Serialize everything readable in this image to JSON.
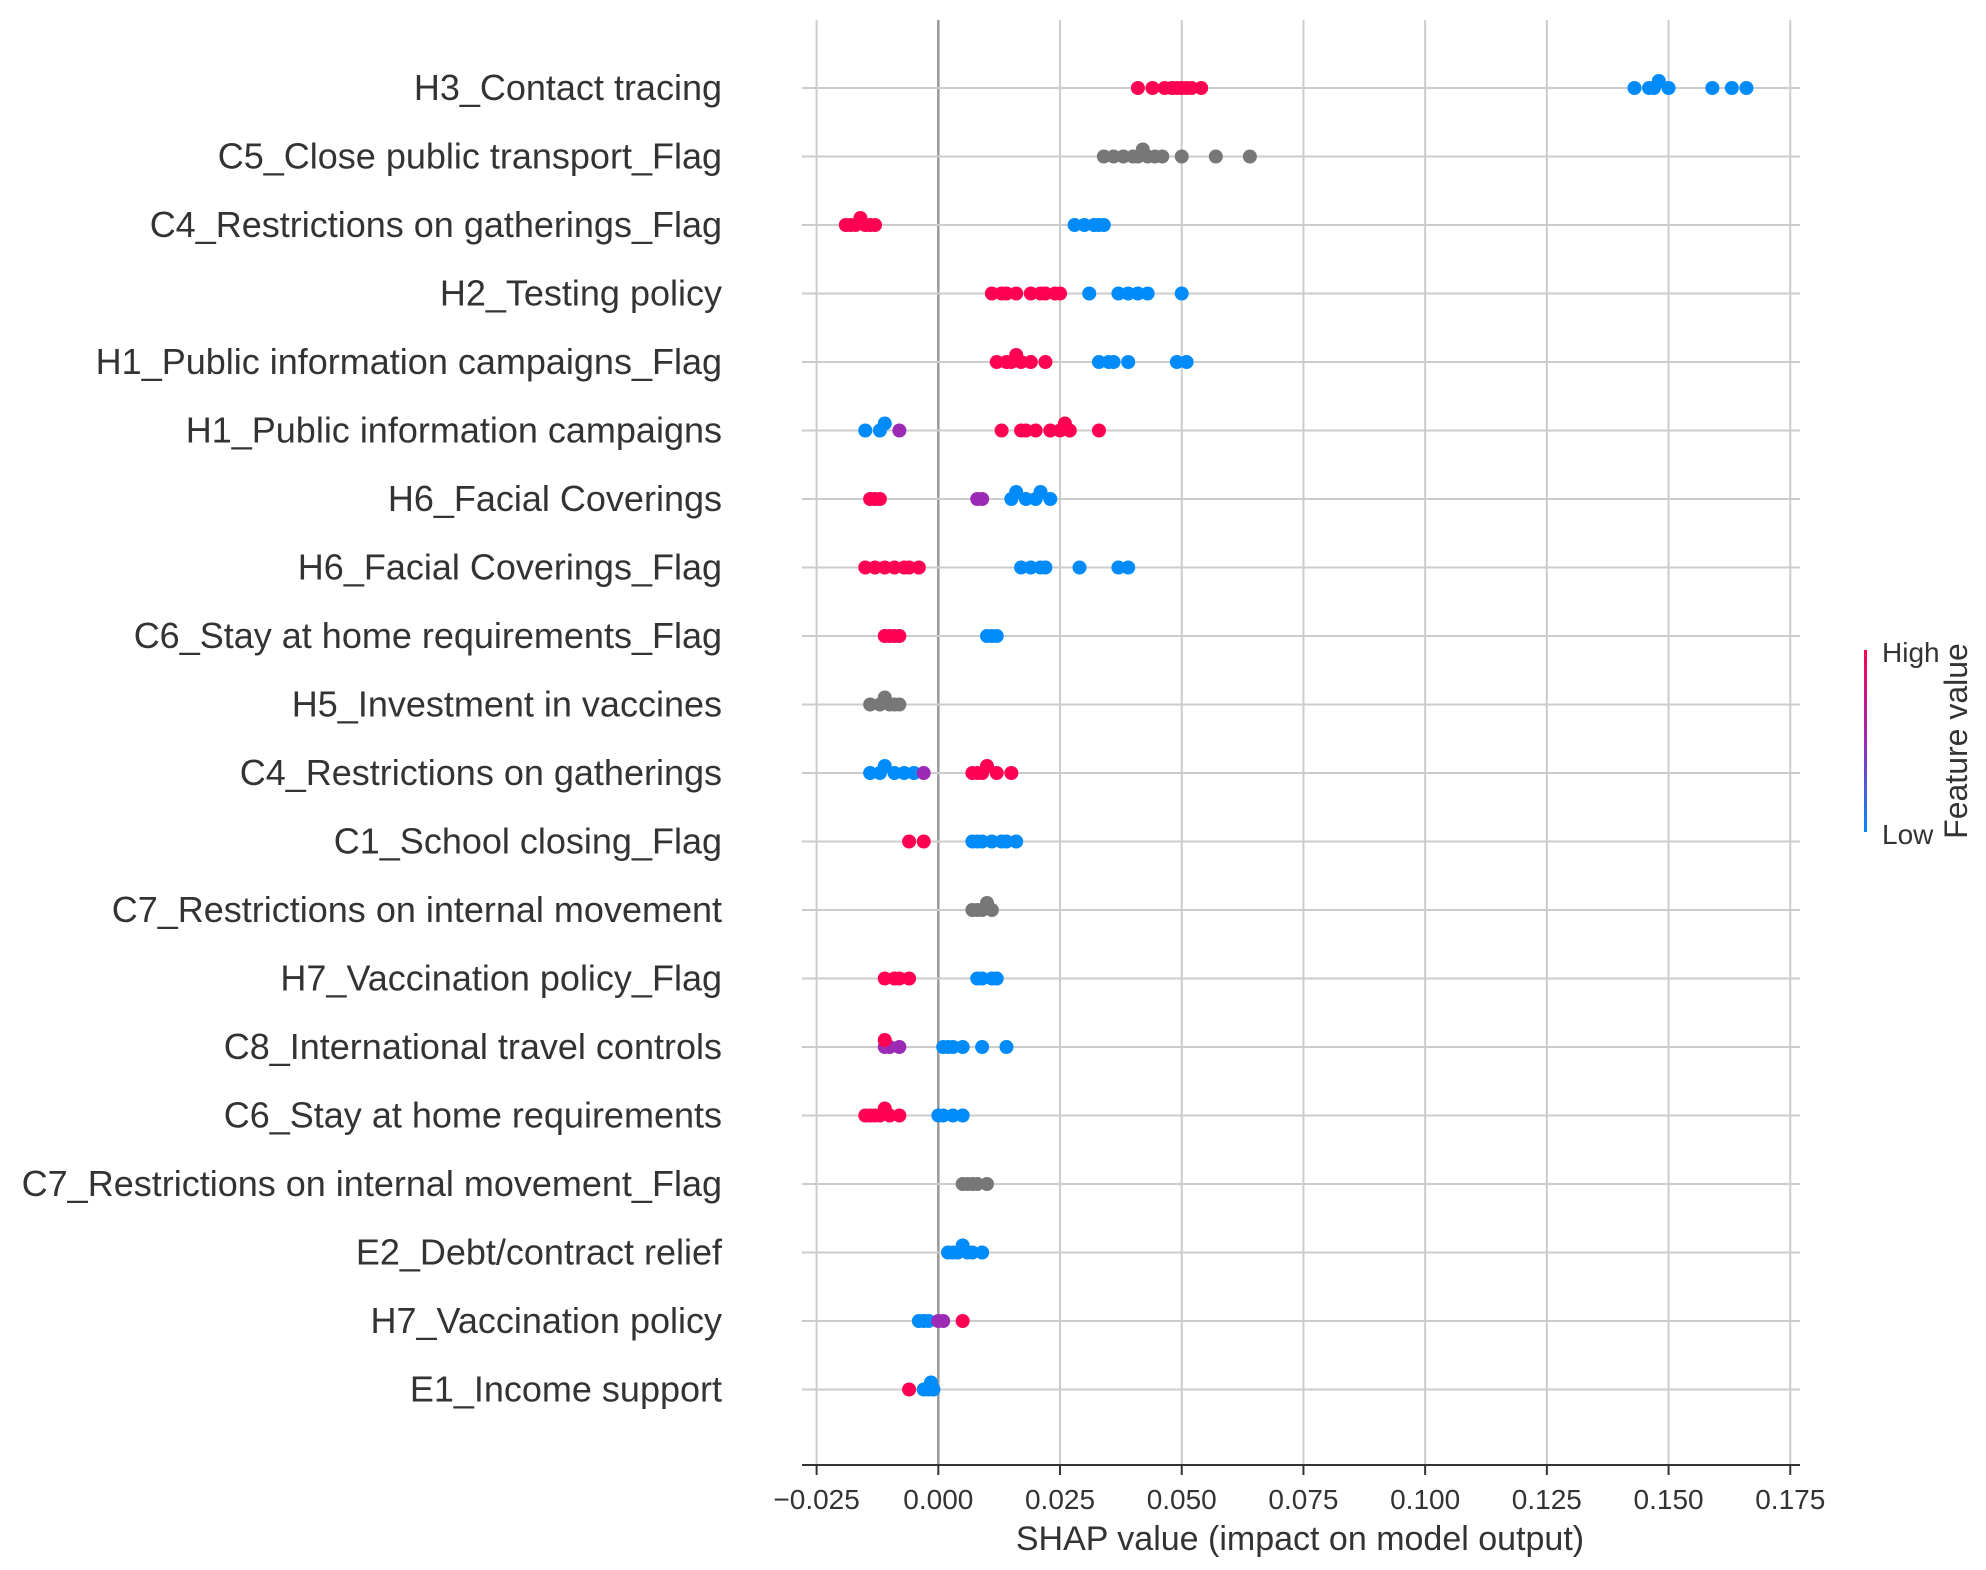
{
  "chart_data": {
    "type": "scatter",
    "subtype": "shap-beeswarm",
    "xlabel": "SHAP value (impact on model output)",
    "xlim": [
      -0.028,
      0.177
    ],
    "xticks": [
      -0.025,
      0.0,
      0.025,
      0.05,
      0.075,
      0.1,
      0.125,
      0.15,
      0.175
    ],
    "xtick_labels": [
      "−0.025",
      "0.000",
      "0.025",
      "0.050",
      "0.075",
      "0.100",
      "0.125",
      "0.150",
      "0.175"
    ],
    "grid": true,
    "colors": {
      "high": "#ff0052",
      "low": "#008bfb",
      "mid": "#9b2bb5",
      "na": "#777777",
      "grid": "#cccccc",
      "zero": "#999999"
    },
    "colorbar": {
      "title": "Feature value",
      "high_label": "High",
      "low_label": "Low",
      "placement": "right"
    },
    "features": [
      {
        "name": "H3_Contact tracing",
        "points": [
          {
            "x": 0.041,
            "c": "high"
          },
          {
            "x": 0.044,
            "c": "high"
          },
          {
            "x": 0.0465,
            "c": "high"
          },
          {
            "x": 0.048,
            "c": "high"
          },
          {
            "x": 0.049,
            "c": "high"
          },
          {
            "x": 0.05,
            "c": "high"
          },
          {
            "x": 0.051,
            "c": "high"
          },
          {
            "x": 0.052,
            "c": "high"
          },
          {
            "x": 0.054,
            "c": "high"
          },
          {
            "x": 0.143,
            "c": "low"
          },
          {
            "x": 0.146,
            "c": "low"
          },
          {
            "x": 0.147,
            "c": "low"
          },
          {
            "x": 0.148,
            "c": "low"
          },
          {
            "x": 0.15,
            "c": "low"
          },
          {
            "x": 0.159,
            "c": "low"
          },
          {
            "x": 0.163,
            "c": "low"
          },
          {
            "x": 0.166,
            "c": "low"
          }
        ]
      },
      {
        "name": "C5_Close public transport_Flag",
        "points": [
          {
            "x": 0.034,
            "c": "na"
          },
          {
            "x": 0.036,
            "c": "na"
          },
          {
            "x": 0.038,
            "c": "na"
          },
          {
            "x": 0.04,
            "c": "na"
          },
          {
            "x": 0.041,
            "c": "na"
          },
          {
            "x": 0.042,
            "c": "na"
          },
          {
            "x": 0.043,
            "c": "na"
          },
          {
            "x": 0.0445,
            "c": "na"
          },
          {
            "x": 0.046,
            "c": "na"
          },
          {
            "x": 0.05,
            "c": "na"
          },
          {
            "x": 0.057,
            "c": "na"
          },
          {
            "x": 0.064,
            "c": "na"
          }
        ]
      },
      {
        "name": "C4_Restrictions on gatherings_Flag",
        "points": [
          {
            "x": -0.019,
            "c": "high"
          },
          {
            "x": -0.018,
            "c": "high"
          },
          {
            "x": -0.017,
            "c": "high"
          },
          {
            "x": -0.016,
            "c": "high"
          },
          {
            "x": -0.015,
            "c": "high"
          },
          {
            "x": -0.014,
            "c": "high"
          },
          {
            "x": -0.013,
            "c": "high"
          },
          {
            "x": 0.028,
            "c": "low"
          },
          {
            "x": 0.03,
            "c": "low"
          },
          {
            "x": 0.032,
            "c": "low"
          },
          {
            "x": 0.033,
            "c": "low"
          },
          {
            "x": 0.034,
            "c": "low"
          }
        ]
      },
      {
        "name": "H2_Testing policy",
        "points": [
          {
            "x": 0.011,
            "c": "high"
          },
          {
            "x": 0.013,
            "c": "high"
          },
          {
            "x": 0.014,
            "c": "high"
          },
          {
            "x": 0.016,
            "c": "high"
          },
          {
            "x": 0.019,
            "c": "high"
          },
          {
            "x": 0.021,
            "c": "high"
          },
          {
            "x": 0.022,
            "c": "high"
          },
          {
            "x": 0.024,
            "c": "high"
          },
          {
            "x": 0.025,
            "c": "high"
          },
          {
            "x": 0.031,
            "c": "low"
          },
          {
            "x": 0.037,
            "c": "low"
          },
          {
            "x": 0.039,
            "c": "low"
          },
          {
            "x": 0.041,
            "c": "low"
          },
          {
            "x": 0.043,
            "c": "low"
          },
          {
            "x": 0.05,
            "c": "low"
          }
        ]
      },
      {
        "name": "H1_Public information campaigns_Flag",
        "points": [
          {
            "x": 0.012,
            "c": "high"
          },
          {
            "x": 0.014,
            "c": "high"
          },
          {
            "x": 0.015,
            "c": "high"
          },
          {
            "x": 0.016,
            "c": "high"
          },
          {
            "x": 0.017,
            "c": "high"
          },
          {
            "x": 0.019,
            "c": "high"
          },
          {
            "x": 0.022,
            "c": "high"
          },
          {
            "x": 0.033,
            "c": "low"
          },
          {
            "x": 0.035,
            "c": "low"
          },
          {
            "x": 0.036,
            "c": "low"
          },
          {
            "x": 0.039,
            "c": "low"
          },
          {
            "x": 0.049,
            "c": "low"
          },
          {
            "x": 0.051,
            "c": "low"
          }
        ]
      },
      {
        "name": "H1_Public information campaigns",
        "points": [
          {
            "x": -0.015,
            "c": "low"
          },
          {
            "x": -0.012,
            "c": "low"
          },
          {
            "x": -0.011,
            "c": "low"
          },
          {
            "x": -0.008,
            "c": "mid"
          },
          {
            "x": 0.013,
            "c": "high"
          },
          {
            "x": 0.017,
            "c": "high"
          },
          {
            "x": 0.018,
            "c": "high"
          },
          {
            "x": 0.02,
            "c": "high"
          },
          {
            "x": 0.023,
            "c": "high"
          },
          {
            "x": 0.025,
            "c": "high"
          },
          {
            "x": 0.026,
            "c": "high"
          },
          {
            "x": 0.027,
            "c": "high"
          },
          {
            "x": 0.033,
            "c": "high"
          }
        ]
      },
      {
        "name": "H6_Facial Coverings",
        "points": [
          {
            "x": -0.014,
            "c": "high"
          },
          {
            "x": -0.013,
            "c": "high"
          },
          {
            "x": -0.012,
            "c": "high"
          },
          {
            "x": 0.008,
            "c": "mid"
          },
          {
            "x": 0.009,
            "c": "mid"
          },
          {
            "x": 0.015,
            "c": "low"
          },
          {
            "x": 0.016,
            "c": "low"
          },
          {
            "x": 0.018,
            "c": "low"
          },
          {
            "x": 0.02,
            "c": "low"
          },
          {
            "x": 0.021,
            "c": "low"
          },
          {
            "x": 0.023,
            "c": "low"
          }
        ]
      },
      {
        "name": "H6_Facial Coverings_Flag",
        "points": [
          {
            "x": -0.015,
            "c": "high"
          },
          {
            "x": -0.013,
            "c": "high"
          },
          {
            "x": -0.011,
            "c": "high"
          },
          {
            "x": -0.009,
            "c": "high"
          },
          {
            "x": -0.007,
            "c": "high"
          },
          {
            "x": -0.006,
            "c": "high"
          },
          {
            "x": -0.004,
            "c": "high"
          },
          {
            "x": 0.017,
            "c": "low"
          },
          {
            "x": 0.019,
            "c": "low"
          },
          {
            "x": 0.021,
            "c": "low"
          },
          {
            "x": 0.022,
            "c": "low"
          },
          {
            "x": 0.029,
            "c": "low"
          },
          {
            "x": 0.037,
            "c": "low"
          },
          {
            "x": 0.039,
            "c": "low"
          }
        ]
      },
      {
        "name": "C6_Stay at home requirements_Flag",
        "points": [
          {
            "x": -0.011,
            "c": "high"
          },
          {
            "x": -0.01,
            "c": "high"
          },
          {
            "x": -0.009,
            "c": "high"
          },
          {
            "x": -0.008,
            "c": "high"
          },
          {
            "x": 0.01,
            "c": "low"
          },
          {
            "x": 0.011,
            "c": "low"
          },
          {
            "x": 0.012,
            "c": "low"
          }
        ]
      },
      {
        "name": "H5_Investment in vaccines",
        "points": [
          {
            "x": -0.014,
            "c": "na"
          },
          {
            "x": -0.012,
            "c": "na"
          },
          {
            "x": -0.011,
            "c": "na"
          },
          {
            "x": -0.01,
            "c": "na"
          },
          {
            "x": -0.009,
            "c": "na"
          },
          {
            "x": -0.008,
            "c": "na"
          }
        ]
      },
      {
        "name": "C4_Restrictions on gatherings",
        "points": [
          {
            "x": -0.014,
            "c": "low"
          },
          {
            "x": -0.012,
            "c": "low"
          },
          {
            "x": -0.011,
            "c": "low"
          },
          {
            "x": -0.009,
            "c": "low"
          },
          {
            "x": -0.007,
            "c": "low"
          },
          {
            "x": -0.005,
            "c": "low"
          },
          {
            "x": -0.003,
            "c": "mid"
          },
          {
            "x": 0.007,
            "c": "high"
          },
          {
            "x": 0.008,
            "c": "high"
          },
          {
            "x": 0.009,
            "c": "high"
          },
          {
            "x": 0.01,
            "c": "high"
          },
          {
            "x": 0.012,
            "c": "high"
          },
          {
            "x": 0.015,
            "c": "high"
          }
        ]
      },
      {
        "name": "C1_School closing_Flag",
        "points": [
          {
            "x": -0.006,
            "c": "high"
          },
          {
            "x": -0.003,
            "c": "high"
          },
          {
            "x": 0.007,
            "c": "low"
          },
          {
            "x": 0.008,
            "c": "low"
          },
          {
            "x": 0.009,
            "c": "low"
          },
          {
            "x": 0.011,
            "c": "low"
          },
          {
            "x": 0.013,
            "c": "low"
          },
          {
            "x": 0.014,
            "c": "low"
          },
          {
            "x": 0.016,
            "c": "low"
          }
        ]
      },
      {
        "name": "C7_Restrictions on internal movement",
        "points": [
          {
            "x": 0.007,
            "c": "na"
          },
          {
            "x": 0.008,
            "c": "na"
          },
          {
            "x": 0.009,
            "c": "na"
          },
          {
            "x": 0.01,
            "c": "na"
          },
          {
            "x": 0.011,
            "c": "na"
          }
        ]
      },
      {
        "name": "H7_Vaccination policy_Flag",
        "points": [
          {
            "x": -0.011,
            "c": "high"
          },
          {
            "x": -0.009,
            "c": "high"
          },
          {
            "x": -0.008,
            "c": "high"
          },
          {
            "x": -0.006,
            "c": "high"
          },
          {
            "x": 0.008,
            "c": "low"
          },
          {
            "x": 0.009,
            "c": "low"
          },
          {
            "x": 0.011,
            "c": "low"
          },
          {
            "x": 0.012,
            "c": "low"
          }
        ]
      },
      {
        "name": "C8_International travel controls",
        "points": [
          {
            "x": -0.011,
            "c": "mid"
          },
          {
            "x": -0.01,
            "c": "mid"
          },
          {
            "x": -0.008,
            "c": "mid"
          },
          {
            "x": -0.011,
            "c": "high"
          },
          {
            "x": 0.001,
            "c": "low"
          },
          {
            "x": 0.002,
            "c": "low"
          },
          {
            "x": 0.003,
            "c": "low"
          },
          {
            "x": 0.005,
            "c": "low"
          },
          {
            "x": 0.009,
            "c": "low"
          },
          {
            "x": 0.014,
            "c": "low"
          }
        ]
      },
      {
        "name": "C6_Stay at home requirements",
        "points": [
          {
            "x": -0.015,
            "c": "high"
          },
          {
            "x": -0.014,
            "c": "high"
          },
          {
            "x": -0.013,
            "c": "high"
          },
          {
            "x": -0.012,
            "c": "high"
          },
          {
            "x": -0.011,
            "c": "high"
          },
          {
            "x": -0.01,
            "c": "high"
          },
          {
            "x": -0.008,
            "c": "high"
          },
          {
            "x": 0.0,
            "c": "low"
          },
          {
            "x": 0.001,
            "c": "low"
          },
          {
            "x": 0.003,
            "c": "low"
          },
          {
            "x": 0.005,
            "c": "low"
          }
        ]
      },
      {
        "name": "C7_Restrictions on internal movement_Flag",
        "points": [
          {
            "x": 0.005,
            "c": "na"
          },
          {
            "x": 0.006,
            "c": "na"
          },
          {
            "x": 0.007,
            "c": "na"
          },
          {
            "x": 0.008,
            "c": "na"
          },
          {
            "x": 0.01,
            "c": "na"
          }
        ]
      },
      {
        "name": "E2_Debt/contract relief",
        "points": [
          {
            "x": 0.002,
            "c": "low"
          },
          {
            "x": 0.003,
            "c": "low"
          },
          {
            "x": 0.004,
            "c": "low"
          },
          {
            "x": 0.005,
            "c": "low"
          },
          {
            "x": 0.006,
            "c": "low"
          },
          {
            "x": 0.007,
            "c": "low"
          },
          {
            "x": 0.009,
            "c": "low"
          }
        ]
      },
      {
        "name": "H7_Vaccination policy",
        "points": [
          {
            "x": -0.004,
            "c": "low"
          },
          {
            "x": -0.003,
            "c": "low"
          },
          {
            "x": -0.002,
            "c": "low"
          },
          {
            "x": 0.0,
            "c": "mid"
          },
          {
            "x": 0.001,
            "c": "mid"
          },
          {
            "x": 0.005,
            "c": "high"
          }
        ]
      },
      {
        "name": "E1_Income support",
        "points": [
          {
            "x": -0.006,
            "c": "high"
          },
          {
            "x": -0.003,
            "c": "low"
          },
          {
            "x": -0.002,
            "c": "low"
          },
          {
            "x": -0.0015,
            "c": "low"
          },
          {
            "x": -0.001,
            "c": "low"
          }
        ]
      }
    ]
  }
}
